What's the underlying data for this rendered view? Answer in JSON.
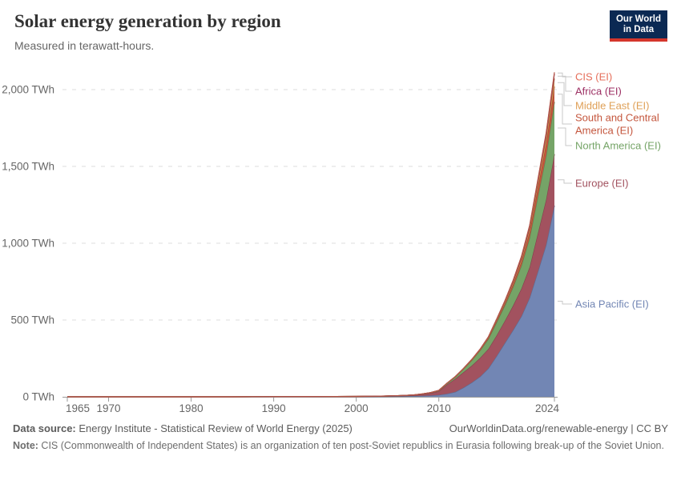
{
  "header": {
    "title": "Solar energy generation by region",
    "subtitle": "Measured in terawatt-hours.",
    "logo": {
      "line1": "Our World",
      "line2": "in Data",
      "bg": "#0b2953",
      "accent": "#d4362c"
    }
  },
  "chart_data": {
    "type": "area",
    "stacked": true,
    "title": "Solar energy generation by region",
    "unit": "TWh",
    "xlabel": "",
    "ylabel": "terawatt-hours",
    "xlim": [
      1965,
      2024
    ],
    "ylim": [
      0,
      2100
    ],
    "grid": "dashed-horizontal",
    "legend_position": "right-edge-labels",
    "x": [
      1965,
      1970,
      1975,
      1980,
      1985,
      1990,
      1995,
      2000,
      2001,
      2002,
      2003,
      2004,
      2005,
      2006,
      2007,
      2008,
      2009,
      2010,
      2011,
      2012,
      2013,
      2014,
      2015,
      2016,
      2017,
      2018,
      2019,
      2020,
      2021,
      2022,
      2023,
      2024
    ],
    "series": [
      {
        "name": "Asia Pacific (EI)",
        "color": "#7286b4",
        "values": [
          0,
          0,
          0,
          0.01,
          0.05,
          0.3,
          0.6,
          1.2,
          1.5,
          1.9,
          2.2,
          2.7,
          3.2,
          4,
          5,
          6.5,
          8.5,
          12,
          20,
          32,
          60,
          93,
          132,
          185,
          265,
          350,
          435,
          524,
          645,
          815,
          990,
          1245
        ]
      },
      {
        "name": "Europe (EI)",
        "color": "#a2525f",
        "values": [
          0,
          0,
          0,
          0,
          0.01,
          0.05,
          0.1,
          0.4,
          0.5,
          0.7,
          1,
          1.5,
          2.5,
          3.5,
          5,
          9,
          15,
          24,
          60,
          85,
          100,
          110,
          122,
          127,
          135,
          145,
          160,
          180,
          200,
          250,
          295,
          335
        ]
      },
      {
        "name": "North America (EI)",
        "color": "#75a467",
        "values": [
          0,
          0,
          0,
          0.01,
          0.2,
          0.5,
          0.65,
          0.9,
          1,
          1.1,
          1.2,
          1.4,
          1.6,
          1.8,
          2.2,
          2.8,
          3.5,
          5,
          8,
          13,
          22,
          35,
          48,
          65,
          85,
          100,
          120,
          150,
          190,
          240,
          285,
          340
        ]
      },
      {
        "name": "South and Central America (EI)",
        "color": "#c4563d",
        "values": [
          0,
          0,
          0,
          0,
          0,
          0,
          0,
          0,
          0,
          0,
          0,
          0,
          0.05,
          0.05,
          0.1,
          0.1,
          0.15,
          0.2,
          0.3,
          0.5,
          0.8,
          1.5,
          2.5,
          4.5,
          7.5,
          12,
          18,
          26,
          40,
          58,
          80,
          100
        ]
      },
      {
        "name": "Middle East (EI)",
        "color": "#dfa057",
        "values": [
          0,
          0,
          0,
          0,
          0,
          0,
          0,
          0,
          0,
          0,
          0,
          0,
          0.03,
          0.05,
          0.05,
          0.1,
          0.1,
          0.2,
          0.4,
          0.7,
          1.2,
          1.8,
          2.5,
          3.8,
          5.5,
          8,
          12,
          16,
          21,
          28,
          38,
          52
        ]
      },
      {
        "name": "Africa (EI)",
        "color": "#9c2f63",
        "values": [
          0,
          0,
          0,
          0,
          0,
          0,
          0,
          0.05,
          0.05,
          0.05,
          0.1,
          0.1,
          0.1,
          0.15,
          0.2,
          0.25,
          0.3,
          0.3,
          0.5,
          0.8,
          1.3,
          2.2,
          3.5,
          5,
          7,
          9.5,
          12,
          14,
          16,
          19,
          24,
          31
        ]
      },
      {
        "name": "CIS (EI)",
        "color": "#e56e5a",
        "values": [
          0,
          0,
          0,
          0,
          0,
          0,
          0,
          0,
          0,
          0,
          0,
          0,
          0,
          0,
          0,
          0,
          0,
          0,
          0,
          0.05,
          0.1,
          0.2,
          0.4,
          0.6,
          0.8,
          1.2,
          2.5,
          4,
          5,
          6.5,
          8,
          10
        ]
      }
    ],
    "legend_top_to_bottom": [
      "CIS (EI)",
      "Africa (EI)",
      "Middle East (EI)",
      "South and Central America (EI)",
      "North America (EI)",
      "Europe (EI)",
      "Asia Pacific (EI)"
    ],
    "y_ticks": {
      "values": [
        0,
        500,
        1000,
        1500,
        2000
      ],
      "labels": [
        "0 TWh",
        "500 TWh",
        "1,000 TWh",
        "1,500 TWh",
        "2,000 TWh"
      ]
    },
    "x_ticks": {
      "values": [
        1965,
        1970,
        1980,
        1990,
        2000,
        2010,
        2024
      ],
      "labels": [
        "1965",
        "1970",
        "1980",
        "1990",
        "2000",
        "2010",
        "2024"
      ]
    }
  },
  "footer": {
    "source_label": "Data source:",
    "source_text": " Energy Institute - Statistical Review of World Energy (2025)",
    "link_text": "OurWorldinData.org/renewable-energy | CC BY",
    "note_label": "Note:",
    "note_text": " CIS (Commonwealth of Independent States) is an organization of ten post-Soviet republics in Eurasia following break-up of the Soviet Union."
  }
}
